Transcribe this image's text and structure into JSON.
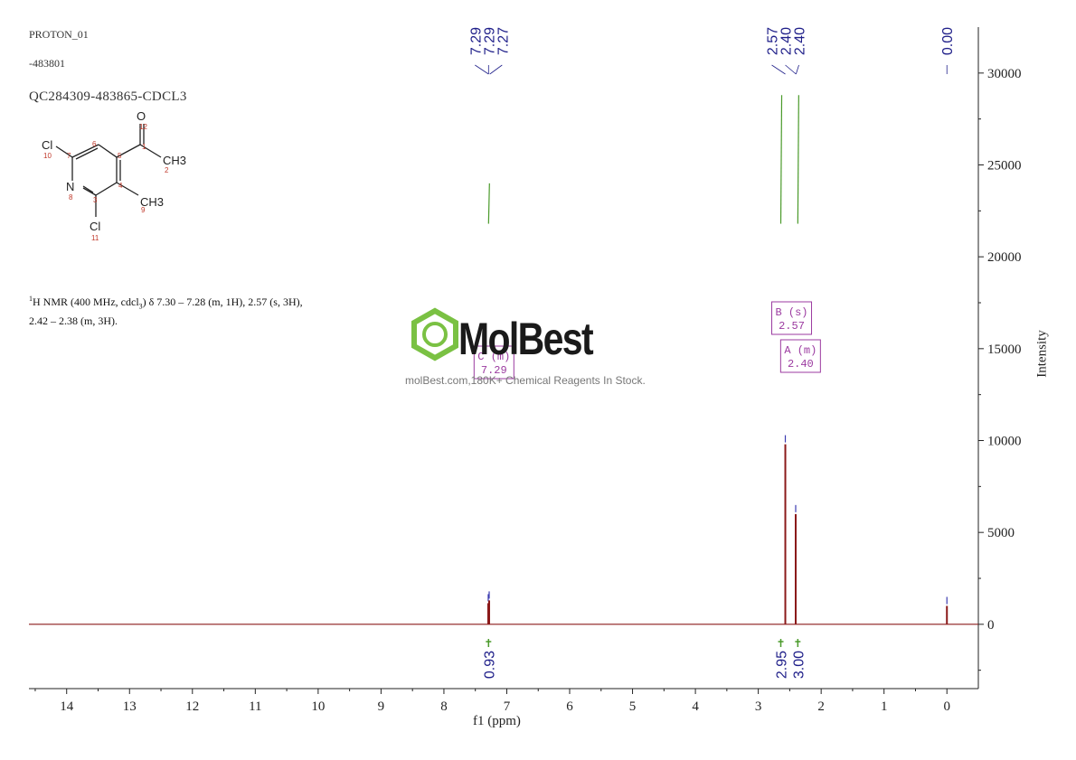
{
  "header": {
    "line1": "PROTON_01",
    "line2": "-483801",
    "sample_name": "QC284309-483865-CDCL3"
  },
  "structure": {
    "atoms": [
      {
        "sym": "O",
        "num": "12"
      },
      {
        "sym": "Cl",
        "num": "10"
      },
      {
        "sym": "CH3",
        "num": "2"
      },
      {
        "sym": "N",
        "num": "8"
      },
      {
        "sym": "CH3",
        "num": "9"
      },
      {
        "sym": "Cl",
        "num": "11"
      }
    ],
    "ring_numbers": [
      "1",
      "3",
      "4",
      "5",
      "6",
      "7"
    ]
  },
  "summary": {
    "sup": "1",
    "text1": "H NMR (400 MHz, cdcl",
    "sub": "3",
    "text2": ") δ 7.30 – 7.28 (m, 1H), 2.57 (s, 3H),",
    "line2": "2.42 – 2.38 (m, 3H)."
  },
  "watermark": {
    "brand": "MolBest",
    "tagline": "molBest.com,180K+ Chemical Reagents In Stock.",
    "color": "#7ac143"
  },
  "chart_data": {
    "type": "line",
    "title": "",
    "xlabel": "f1 (ppm)",
    "ylabel": "Intensity",
    "xlim": [
      14.6,
      -0.5
    ],
    "ylim": [
      -3500,
      32500
    ],
    "x_ticks": [
      14,
      13,
      12,
      11,
      10,
      9,
      8,
      7,
      6,
      5,
      4,
      3,
      2,
      1,
      0
    ],
    "y_ticks": [
      0,
      5000,
      10000,
      15000,
      20000,
      25000,
      30000
    ],
    "colors": {
      "spectrum": "#8b1a1a",
      "peak_marker": "#3b3bb0",
      "integral": "#4a9a2a",
      "multiplet": "#9b3aa0",
      "label": "#20208a"
    },
    "series": [
      {
        "peaks": [
          {
            "ppm": 7.295,
            "intensity": 1150
          },
          {
            "ppm": 7.28,
            "intensity": 1300
          },
          {
            "ppm": 2.57,
            "intensity": 9800
          },
          {
            "ppm": 2.405,
            "intensity": 6000
          },
          {
            "ppm": 0.0,
            "intensity": 1000
          }
        ]
      }
    ],
    "peak_labels": [
      {
        "ppm": 7.29,
        "text": "7.29"
      },
      {
        "ppm": 7.29,
        "text": "7.29"
      },
      {
        "ppm": 7.27,
        "text": "7.27"
      },
      {
        "ppm": 2.57,
        "text": "2.57"
      },
      {
        "ppm": 2.4,
        "text": "2.40"
      },
      {
        "ppm": 2.4,
        "text": "2.40"
      },
      {
        "ppm": 0.0,
        "text": "0.00"
      }
    ],
    "integrals": [
      {
        "ppm": 7.29,
        "value": "0.93",
        "curve_low": 21800,
        "curve_high": 24000
      },
      {
        "ppm": 2.57,
        "value": "2.95",
        "curve_low": 21800,
        "curve_high": 28800
      },
      {
        "ppm": 2.4,
        "value": "3.00",
        "curve_low": 21800,
        "curve_high": 28800
      }
    ],
    "multiplets": [
      {
        "ppm": 7.29,
        "label": "C (m)",
        "shift": "7.29"
      },
      {
        "ppm": 2.57,
        "label": "B (s)",
        "shift": "2.57"
      },
      {
        "ppm": 2.4,
        "label": "A (m)",
        "shift": "2.40"
      }
    ]
  }
}
